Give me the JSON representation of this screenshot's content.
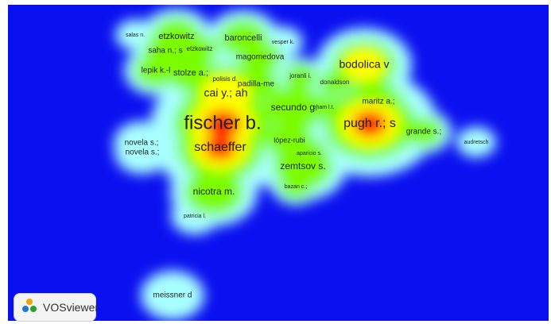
{
  "app": {
    "name": "VOSviewer"
  },
  "colors": {
    "background": "#0b10f0",
    "low": "#a8ffff",
    "mid": "#7cfc00",
    "high": "#ffff00",
    "peak": "#ff1a00"
  },
  "labels": [
    {
      "text": "fischer b.",
      "density": 1.0
    },
    {
      "text": "schaeffer",
      "density": 0.95
    },
    {
      "text": "pugh r.; s",
      "density": 0.85
    },
    {
      "text": "bodolica v",
      "density": 0.7
    },
    {
      "text": "cai y.; ah",
      "density": 0.75
    },
    {
      "text": "secundo g.",
      "density": 0.6
    },
    {
      "text": "zemtsov s.",
      "density": 0.6
    },
    {
      "text": "nicotra m.",
      "density": 0.55
    },
    {
      "text": "stolze a.;",
      "density": 0.5
    },
    {
      "text": "etzkowitz",
      "density": 0.5
    },
    {
      "text": "baroncelli",
      "density": 0.35
    },
    {
      "text": "saha n.; s",
      "density": 0.45
    },
    {
      "text": "lepik k.-l",
      "density": 0.4
    },
    {
      "text": "magomedova",
      "density": 0.35
    },
    {
      "text": "padilla-me",
      "density": 0.45
    },
    {
      "text": "maritz a.;",
      "density": 0.55
    },
    {
      "text": "grande s.;",
      "density": 0.3
    },
    {
      "text": "novela s.;",
      "density": 0.25
    },
    {
      "text": "novela s.;",
      "density": 0.25
    },
    {
      "text": "lópez-rubi",
      "density": 0.55
    },
    {
      "text": "meissner d",
      "density": 0.25
    },
    {
      "text": "etzkowitz",
      "density": 0.4
    },
    {
      "text": "polisis d.",
      "density": 0.4
    },
    {
      "text": "joranli i.",
      "density": 0.3
    },
    {
      "text": "donaldson",
      "density": 0.3
    },
    {
      "text": "pham l.t.",
      "density": 0.35
    },
    {
      "text": "bazan c.;",
      "density": 0.35
    },
    {
      "text": "aparicio s.",
      "density": 0.35
    },
    {
      "text": "patricia l.",
      "density": 0.2
    },
    {
      "text": "vesper k.",
      "density": 0.2
    },
    {
      "text": "salas n.",
      "density": 0.15
    },
    {
      "text": "audretsch",
      "density": 0.15
    }
  ]
}
